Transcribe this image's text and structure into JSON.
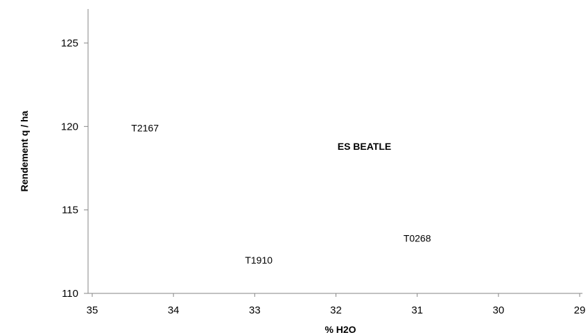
{
  "chart_data": {
    "type": "scatter",
    "title": "",
    "xlabel": "% H2O",
    "ylabel": "Rendement q / ha",
    "xlim": [
      35,
      29
    ],
    "ylim": [
      110,
      127
    ],
    "x_reversed": true,
    "xticks": [
      "35",
      "34",
      "33",
      "32",
      "31",
      "30",
      "29"
    ],
    "yticks": [
      "110",
      "115",
      "120",
      "125"
    ],
    "grid": false,
    "points": [
      {
        "label": "T2167",
        "x": 34.35,
        "y": 119.9,
        "color": "#000000"
      },
      {
        "label": "ES BEATLE",
        "x": 31.65,
        "y": 118.8,
        "color": "#77A230",
        "highlight": true
      },
      {
        "label": "T0268",
        "x": 31.0,
        "y": 113.3,
        "color": "#000000"
      },
      {
        "label": "T1910",
        "x": 32.95,
        "y": 112.0,
        "color": "#000000"
      }
    ]
  }
}
